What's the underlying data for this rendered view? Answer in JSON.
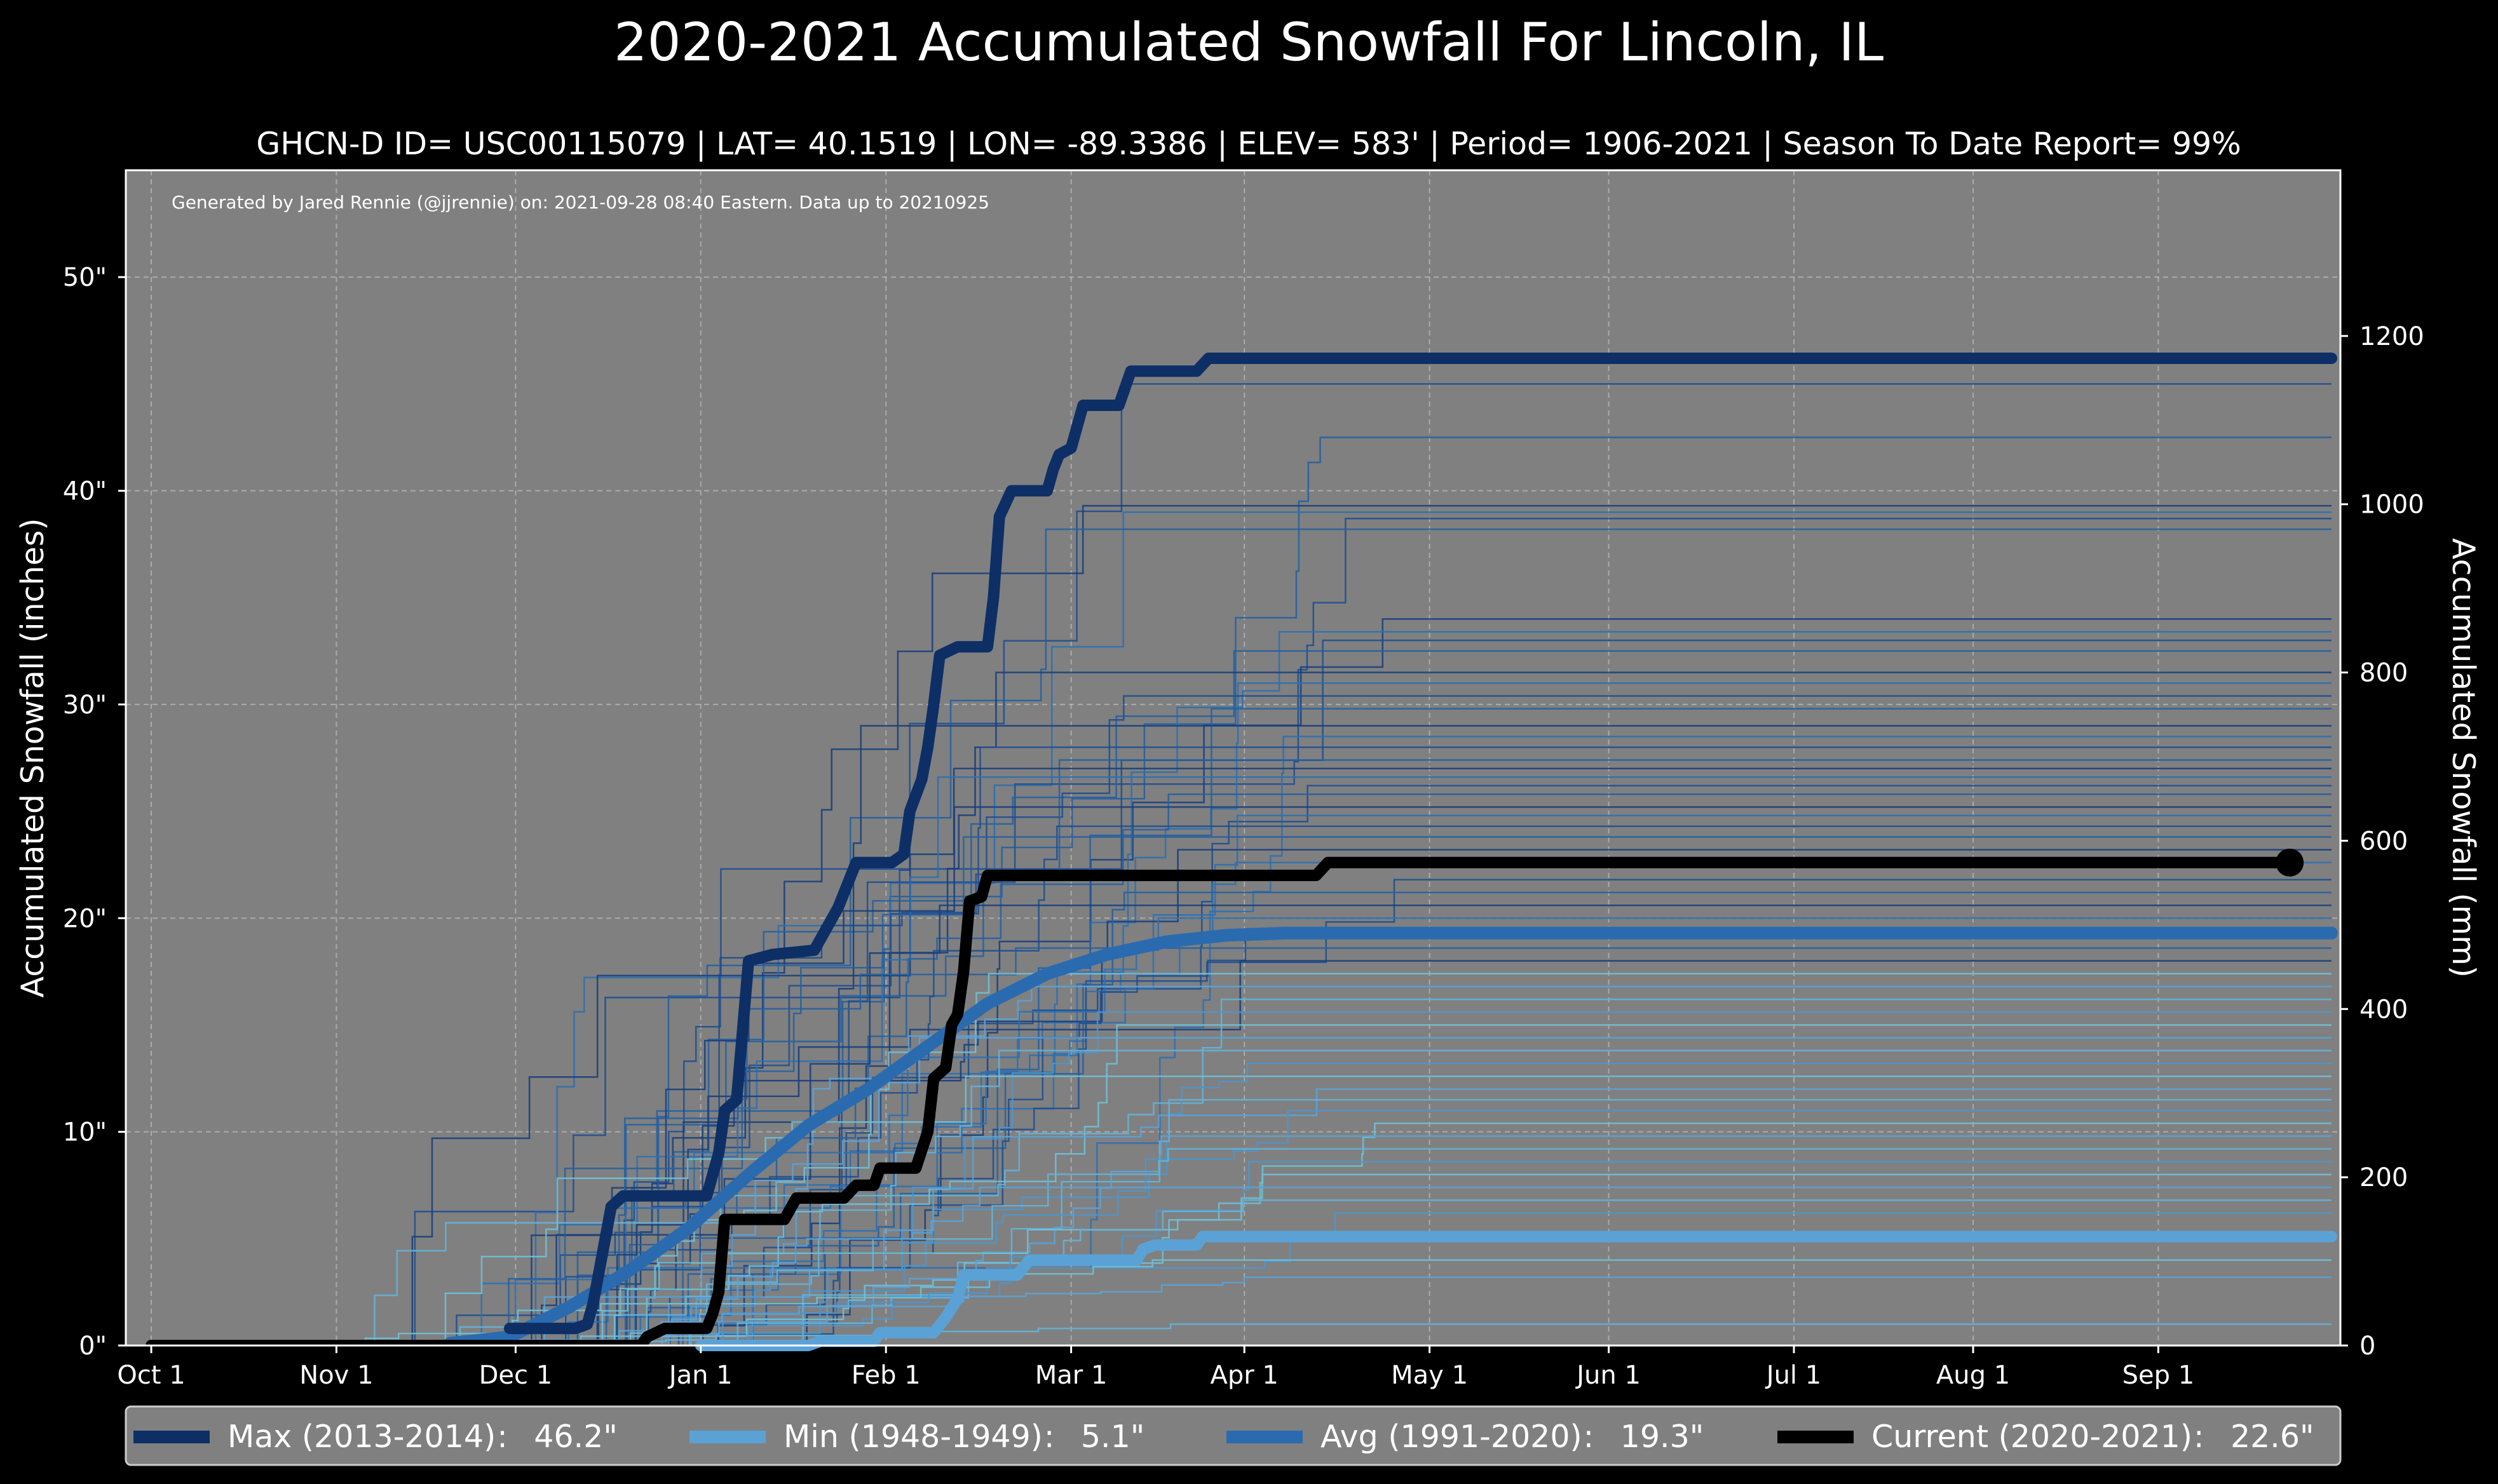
{
  "chart_data": {
    "type": "line",
    "title": "2020-2021 Accumulated Snowfall For Lincoln, IL",
    "subtitle": "GHCN-D ID= USC00115079 | LAT= 40.1519 | LON= -89.3386 | ELEV= 583' | Period= 1906-2021 | Season To Date Report= 99%",
    "credit": "Generated by Jared Rennie (@jjrennie) on: 2021-09-28 08:40 Eastern. Data up to 20210925",
    "ylabel": "Accumulated Snowfall (inches)",
    "ylabel_right": "Accumulated Snowfall (mm)",
    "x_unit": "day of season (0 = Oct 1)",
    "xlim": [
      -5,
      365
    ],
    "ylim": [
      0,
      55
    ],
    "ylim_right_mm": [
      0,
      1397
    ],
    "grid": true,
    "x_ticks": [
      {
        "day": 0,
        "label": "Oct 1"
      },
      {
        "day": 31,
        "label": "Nov 1"
      },
      {
        "day": 61,
        "label": "Dec 1"
      },
      {
        "day": 92,
        "label": "Jan 1"
      },
      {
        "day": 123,
        "label": "Feb 1"
      },
      {
        "day": 154,
        "label": "Mar 1"
      },
      {
        "day": 183,
        "label": "Apr 1"
      },
      {
        "day": 214,
        "label": "May 1"
      },
      {
        "day": 244,
        "label": "Jun 1"
      },
      {
        "day": 275,
        "label": "Jul 1"
      },
      {
        "day": 305,
        "label": "Aug 1"
      },
      {
        "day": 336,
        "label": "Sep 1"
      }
    ],
    "y_ticks": [
      {
        "value": 0,
        "label": "0\""
      },
      {
        "value": 10,
        "label": "10\""
      },
      {
        "value": 20,
        "label": "20\""
      },
      {
        "value": 30,
        "label": "30\""
      },
      {
        "value": 40,
        "label": "40\""
      },
      {
        "value": 50,
        "label": "50\""
      }
    ],
    "y_ticks_right": [
      {
        "value": 0,
        "label": "0"
      },
      {
        "value": 200,
        "label": "200"
      },
      {
        "value": 400,
        "label": "400"
      },
      {
        "value": 600,
        "label": "600"
      },
      {
        "value": 800,
        "label": "800"
      },
      {
        "value": 1000,
        "label": "1000"
      },
      {
        "value": 1200,
        "label": "1200"
      }
    ],
    "historical_finals": [
      45.0,
      42.5,
      39.3,
      39.0,
      38.7,
      38.2,
      34.0,
      33.4,
      33.0,
      32.5,
      31.5,
      31.0,
      30.4,
      29.8,
      29.0,
      28.5,
      28.0,
      27.4,
      27.0,
      26.6,
      26.2,
      25.8,
      25.2,
      24.8,
      24.3,
      23.8,
      23.2,
      22.6,
      21.8,
      21.2,
      20.6,
      20.0,
      19.5,
      18.6,
      18.0,
      17.4,
      16.8,
      16.2,
      15.6,
      15.0,
      14.4,
      13.8,
      13.2,
      12.6,
      12.0,
      11.5,
      11.0,
      10.4,
      9.8,
      9.2,
      8.6,
      8.0,
      7.4,
      6.8,
      6.2,
      4.0,
      3.2,
      1.0
    ],
    "series": [
      {
        "name": "Max (2013-2014)",
        "legend_value": "46.2\"",
        "color": "#0d2f66",
        "points": [
          [
            60,
            0.8
          ],
          [
            71,
            0.8
          ],
          [
            73,
            1.0
          ],
          [
            74,
            2.0
          ],
          [
            77,
            6.5
          ],
          [
            79,
            7.0
          ],
          [
            93,
            7.0
          ],
          [
            95,
            9.0
          ],
          [
            96,
            11.0
          ],
          [
            98,
            11.5
          ],
          [
            100,
            18.0
          ],
          [
            104,
            18.3
          ],
          [
            111,
            18.5
          ],
          [
            113,
            19.5
          ],
          [
            115,
            20.5
          ],
          [
            118,
            22.6
          ],
          [
            124,
            22.6
          ],
          [
            126,
            23.0
          ],
          [
            127,
            25.0
          ],
          [
            129,
            26.5
          ],
          [
            130,
            28.0
          ],
          [
            131,
            30.0
          ],
          [
            132,
            32.3
          ],
          [
            135,
            32.7
          ],
          [
            140,
            32.7
          ],
          [
            141,
            35.0
          ],
          [
            142,
            38.8
          ],
          [
            144,
            40.0
          ],
          [
            150,
            40.0
          ],
          [
            151,
            41.0
          ],
          [
            152,
            41.7
          ],
          [
            154,
            42.0
          ],
          [
            156,
            44.0
          ],
          [
            162,
            44.0
          ],
          [
            164,
            45.6
          ],
          [
            175,
            45.6
          ],
          [
            177,
            46.2
          ],
          [
            365,
            46.2
          ]
        ]
      },
      {
        "name": "Min (1948-1949)",
        "legend_value": "5.1\"",
        "color": "#5aa2d6",
        "points": [
          [
            92,
            0.0
          ],
          [
            110,
            0.0
          ],
          [
            112,
            0.2
          ],
          [
            121,
            0.2
          ],
          [
            122,
            0.6
          ],
          [
            131,
            0.6
          ],
          [
            133,
            1.3
          ],
          [
            135,
            2.2
          ],
          [
            136,
            3.3
          ],
          [
            145,
            3.3
          ],
          [
            147,
            4.0
          ],
          [
            165,
            4.0
          ],
          [
            166,
            4.5
          ],
          [
            168,
            4.7
          ],
          [
            175,
            4.7
          ],
          [
            176,
            5.1
          ],
          [
            365,
            5.1
          ]
        ]
      },
      {
        "name": "Avg (1991-2020)",
        "legend_value": "19.3\"",
        "color": "#2a6bb0",
        "points": [
          [
            50,
            0.1
          ],
          [
            60,
            0.4
          ],
          [
            70,
            1.8
          ],
          [
            80,
            3.5
          ],
          [
            90,
            5.5
          ],
          [
            100,
            8.0
          ],
          [
            110,
            10.3
          ],
          [
            120,
            12.0
          ],
          [
            130,
            14.0
          ],
          [
            140,
            16.0
          ],
          [
            150,
            17.4
          ],
          [
            160,
            18.3
          ],
          [
            170,
            18.9
          ],
          [
            180,
            19.2
          ],
          [
            190,
            19.3
          ],
          [
            365,
            19.3
          ]
        ]
      },
      {
        "name": "Current (2020-2021)",
        "legend_value": "22.6\"",
        "color": "#000000",
        "points": [
          [
            0,
            0.0
          ],
          [
            82,
            0.0
          ],
          [
            83,
            0.4
          ],
          [
            86,
            0.8
          ],
          [
            93,
            0.8
          ],
          [
            94,
            1.5
          ],
          [
            95,
            2.5
          ],
          [
            96,
            5.9
          ],
          [
            106,
            5.9
          ],
          [
            108,
            6.9
          ],
          [
            116,
            6.9
          ],
          [
            118,
            7.5
          ],
          [
            121,
            7.5
          ],
          [
            122,
            8.3
          ],
          [
            128,
            8.3
          ],
          [
            130,
            10.0
          ],
          [
            131,
            12.5
          ],
          [
            133,
            13.0
          ],
          [
            134,
            15.0
          ],
          [
            135,
            15.5
          ],
          [
            136,
            17.5
          ],
          [
            137,
            20.8
          ],
          [
            139,
            21.0
          ],
          [
            140,
            22.0
          ],
          [
            195,
            22.0
          ],
          [
            197,
            22.6
          ],
          [
            358,
            22.6
          ]
        ],
        "end_marker": true
      }
    ]
  }
}
